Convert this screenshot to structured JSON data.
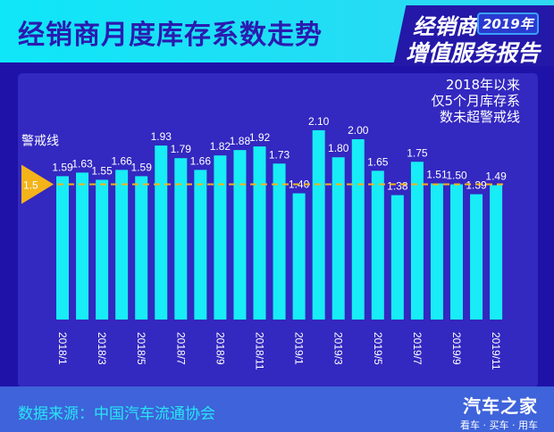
{
  "header": {
    "title": "经销商月度库存系数走势",
    "badge_line1": "经销商",
    "badge_year": "2019年",
    "badge_line2": "增值服务报告"
  },
  "note": [
    "2018年以来",
    "仅5个月库存系",
    "数未超警戒线"
  ],
  "footer": {
    "source": "数据来源：中国汽车流通协会",
    "logo_name": "汽车之家",
    "logo_slogan": "看车 · 买车 · 用车"
  },
  "chart_data": {
    "type": "bar",
    "categories": [
      "2018/1",
      "2018/2",
      "2018/3",
      "2018/4",
      "2018/5",
      "2018/6",
      "2018/7",
      "2018/8",
      "2018/9",
      "2018/10",
      "2018/11",
      "2018/12",
      "2019/1",
      "2019/2",
      "2019/3",
      "2019/4",
      "2019/5",
      "2019/6",
      "2019/7",
      "2019/8",
      "2019/9",
      "2019/10",
      "2019/11"
    ],
    "tick_labels": [
      "2018/1",
      "2018/3",
      "2018/5",
      "2018/7",
      "2018/9",
      "2018/11",
      "2019/1",
      "2019/3",
      "2019/5",
      "2019/7",
      "2019/9",
      "2019/11"
    ],
    "values": [
      1.59,
      1.63,
      1.55,
      1.66,
      1.59,
      1.93,
      1.79,
      1.66,
      1.82,
      1.88,
      1.92,
      1.73,
      1.4,
      2.1,
      1.8,
      2.0,
      1.65,
      1.38,
      1.75,
      1.51,
      1.5,
      1.39,
      1.49
    ],
    "value_labels": [
      "1.59",
      "1.63",
      "1.55",
      "1.66",
      "1.59",
      "1.93",
      "1.79",
      "1.66",
      "1.82",
      "1.88",
      "1.92",
      "1.73",
      "1.40",
      "2.10",
      "1.80",
      "2.00",
      "1.65",
      "1.38",
      "1.75",
      "1.51",
      "1.50",
      "1.39",
      "1.49"
    ],
    "threshold": {
      "label": "警戒线",
      "value": 1.5,
      "value_label": "1.5",
      "color": "#f5b31a"
    },
    "ylim": [
      0,
      2.3
    ],
    "bar_color": "#18ecf6",
    "grid": false
  }
}
